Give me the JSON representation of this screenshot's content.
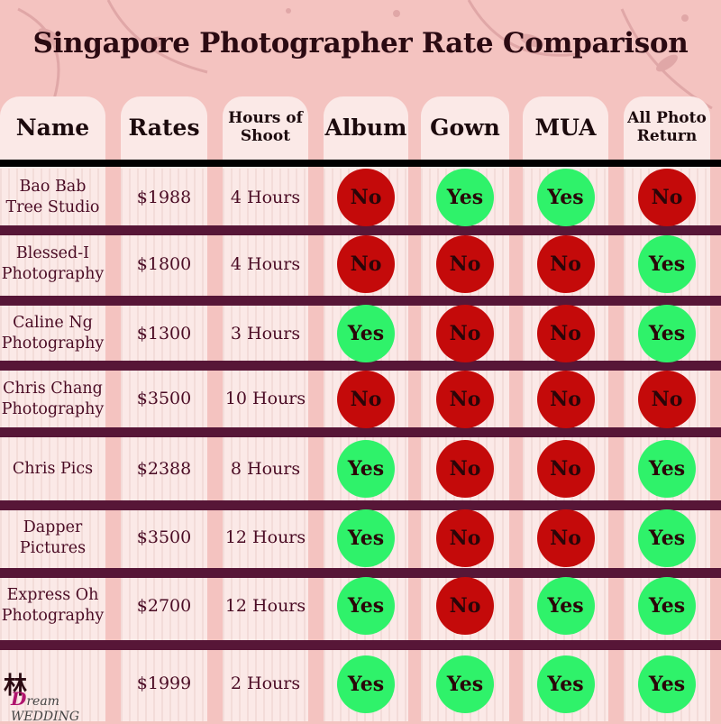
{
  "title": "Singapore Photographer Rate Comparison",
  "colors": {
    "yes": "#2ff26a",
    "no": "#c40a0a",
    "row_separator": "#571637",
    "column_bg": "#fbe9e7",
    "background": "#f4c3c0"
  },
  "headers": {
    "name": "Name",
    "rates": "Rates",
    "hours": "Hours of Shoot",
    "album": "Album",
    "gown": "Gown",
    "mua": "MUA",
    "all_photo_return": "All Photo Return"
  },
  "rows": [
    {
      "name": "Bao Bab Tree Studio",
      "rates": "$1988",
      "hours": "4 Hours",
      "album": "No",
      "gown": "Yes",
      "mua": "Yes",
      "all_photo_return": "No"
    },
    {
      "name": "Blessed-I Photography",
      "rates": "$1800",
      "hours": "4 Hours",
      "album": "No",
      "gown": "No",
      "mua": "No",
      "all_photo_return": "Yes"
    },
    {
      "name": "Caline Ng Photography",
      "rates": "$1300",
      "hours": "3 Hours",
      "album": "Yes",
      "gown": "No",
      "mua": "No",
      "all_photo_return": "Yes"
    },
    {
      "name": "Chris Chang Photography",
      "rates": "$3500",
      "hours": "10 Hours",
      "album": "No",
      "gown": "No",
      "mua": "No",
      "all_photo_return": "No"
    },
    {
      "name": "Chris Pics",
      "rates": "$2388",
      "hours": "8 Hours",
      "album": "Yes",
      "gown": "No",
      "mua": "No",
      "all_photo_return": "Yes"
    },
    {
      "name": "Dapper Pictures",
      "rates": "$3500",
      "hours": "12 Hours",
      "album": "Yes",
      "gown": "No",
      "mua": "No",
      "all_photo_return": "Yes"
    },
    {
      "name": "Express Oh Photography",
      "rates": "$2700",
      "hours": "12 Hours",
      "album": "Yes",
      "gown": "No",
      "mua": "Yes",
      "all_photo_return": "Yes"
    },
    {
      "name": "",
      "rates": "$1999",
      "hours": "2 Hours",
      "album": "Yes",
      "gown": "Yes",
      "mua": "Yes",
      "all_photo_return": "Yes"
    }
  ],
  "logo": {
    "mark": "林",
    "text_accent": "D",
    "text_rest": "ream",
    "text_brand": "WEDDING"
  }
}
